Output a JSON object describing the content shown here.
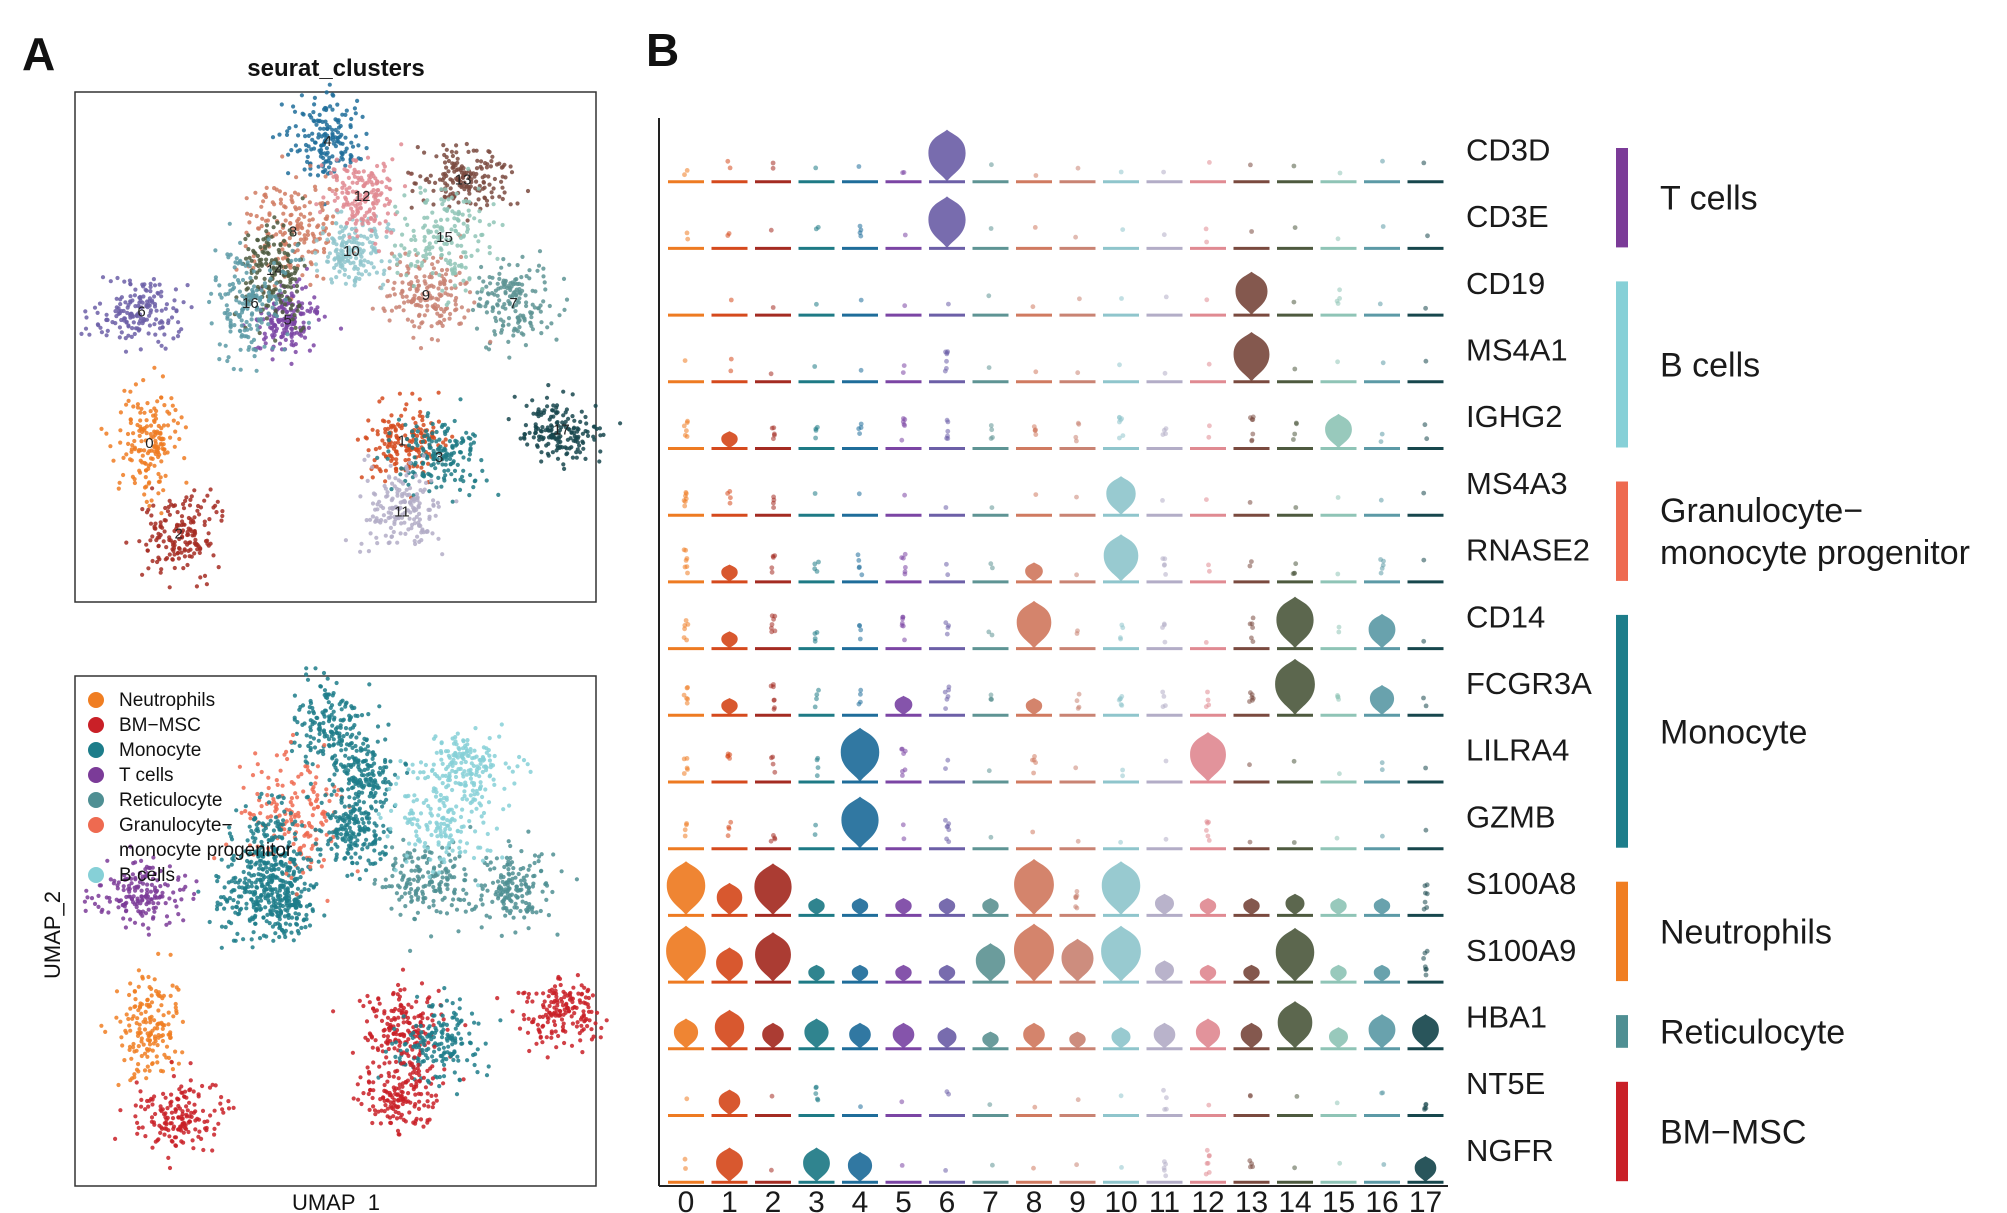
{
  "figure": {
    "panel_a_label": "A",
    "panel_b_label": "B"
  },
  "chart_data": [
    {
      "type": "scatter",
      "title": "seurat_clusters",
      "xlabel": "",
      "ylabel": "",
      "clusters": [
        {
          "id": "0",
          "x": -6.5,
          "y": 0.5,
          "color": "#EE7B22"
        },
        {
          "id": "1",
          "x": 3.0,
          "y": 0.6,
          "color": "#D54A1D"
        },
        {
          "id": "2",
          "x": -5.4,
          "y": -2.8,
          "color": "#A42B22"
        },
        {
          "id": "3",
          "x": 4.4,
          "y": 0.0,
          "color": "#1E7A85"
        },
        {
          "id": "4",
          "x": 0.2,
          "y": 11.5,
          "color": "#1F6D9A"
        },
        {
          "id": "5",
          "x": -1.3,
          "y": 5.0,
          "color": "#7B45A4"
        },
        {
          "id": "6",
          "x": -6.8,
          "y": 5.3,
          "color": "#6C5FA7"
        },
        {
          "id": "7",
          "x": 7.2,
          "y": 5.6,
          "color": "#5E9494"
        },
        {
          "id": "8",
          "x": -1.1,
          "y": 8.2,
          "color": "#D07A60"
        },
        {
          "id": "9",
          "x": 3.9,
          "y": 5.9,
          "color": "#C98373"
        },
        {
          "id": "10",
          "x": 1.1,
          "y": 7.5,
          "color": "#8FC5CC"
        },
        {
          "id": "11",
          "x": 3.0,
          "y": -2.0,
          "color": "#B3ADC7"
        },
        {
          "id": "12",
          "x": 1.5,
          "y": 9.5,
          "color": "#E08A92"
        },
        {
          "id": "13",
          "x": 5.3,
          "y": 10.1,
          "color": "#7A4A3F"
        },
        {
          "id": "14",
          "x": -1.8,
          "y": 6.8,
          "color": "#4E5A3F"
        },
        {
          "id": "15",
          "x": 4.6,
          "y": 8.0,
          "color": "#8FC4B6"
        },
        {
          "id": "16",
          "x": -2.7,
          "y": 5.6,
          "color": "#5C9AA6"
        },
        {
          "id": "17",
          "x": 9.0,
          "y": 1.0,
          "color": "#17474D"
        }
      ]
    },
    {
      "type": "scatter",
      "title": "",
      "xlabel": "UMAP_1",
      "ylabel": "UMAP_2",
      "legend_position": "top-left",
      "legend": [
        {
          "line1": "Neutrophils",
          "line2": "",
          "color": "#F07E22"
        },
        {
          "line1": "BM−MSC",
          "line2": "",
          "color": "#C92027"
        },
        {
          "line1": "Monocyte",
          "line2": "",
          "color": "#1D7D8A"
        },
        {
          "line1": "T cells",
          "line2": "",
          "color": "#7B3B98"
        },
        {
          "line1": "Reticulocyte",
          "line2": "",
          "color": "#4F8F93"
        },
        {
          "line1": "Granulocyte−",
          "line2": "monocyte progenitor",
          "color": "#EE6A50"
        },
        {
          "line1": "B cells",
          "line2": "",
          "color": "#86D0D7"
        }
      ]
    },
    {
      "type": "violin",
      "categories": [
        "0",
        "1",
        "2",
        "3",
        "4",
        "5",
        "6",
        "7",
        "8",
        "9",
        "10",
        "11",
        "12",
        "13",
        "14",
        "15",
        "16",
        "17"
      ],
      "cluster_colors": [
        "#EE7B22",
        "#D54A1D",
        "#A42B22",
        "#1E7A85",
        "#1F6D9A",
        "#7B45A4",
        "#6C5FA7",
        "#5E9494",
        "#D07A60",
        "#C98373",
        "#8FC5CC",
        "#B3ADC7",
        "#E08A92",
        "#7A4A3F",
        "#4E5A3F",
        "#8FC4B6",
        "#5C9AA6",
        "#17474D"
      ],
      "genes": [
        "CD3D",
        "CD3E",
        "CD19",
        "MS4A1",
        "IGHG2",
        "MS4A3",
        "RNASE2",
        "CD14",
        "FCGR3A",
        "LILRA4",
        "GZMB",
        "S100A8",
        "S100A9",
        "HBA1",
        "NT5E",
        "NGFR"
      ],
      "expression": [
        [
          0.2,
          0.15,
          0.15,
          0.1,
          0.1,
          0.15,
          2.4,
          0.05,
          0.05,
          0.05,
          0.1,
          0.05,
          0.05,
          0.1,
          0.1,
          0.05,
          0.05,
          0.05
        ],
        [
          0.2,
          0.15,
          0.1,
          0.15,
          0.3,
          0.1,
          2.4,
          0.05,
          0.05,
          0.05,
          0.05,
          0.05,
          0.2,
          0.05,
          0.05,
          0.05,
          0.1,
          0.05
        ],
        [
          0,
          0.05,
          0.05,
          0.05,
          0.1,
          0.05,
          0.05,
          0.05,
          0.05,
          0.05,
          0.05,
          0.05,
          0.1,
          2.0,
          0.1,
          0.3,
          0.05,
          0.05
        ],
        [
          0.1,
          0.15,
          0.1,
          0.05,
          0.1,
          0.15,
          0.6,
          0.05,
          0.05,
          0.05,
          0.05,
          0.05,
          0.05,
          2.3,
          0.05,
          0.05,
          0.05,
          0.05
        ],
        [
          0.5,
          0.8,
          0.4,
          0.3,
          0.3,
          0.5,
          0.5,
          0.3,
          0.4,
          0.3,
          0.6,
          0.3,
          0.2,
          0.6,
          0.3,
          1.6,
          0.2,
          0.2
        ],
        [
          0.6,
          0.3,
          0.3,
          0.1,
          0.1,
          0.1,
          0.1,
          0.05,
          0.05,
          0.05,
          1.8,
          0.1,
          0.1,
          0.1,
          0.05,
          0.05,
          0.05,
          0.1
        ],
        [
          0.6,
          0.8,
          0.4,
          0.3,
          0.4,
          0.5,
          0.2,
          0.2,
          0.9,
          0.1,
          2.2,
          0.4,
          0.2,
          0.2,
          0.3,
          0.1,
          0.4,
          0.1
        ],
        [
          0.5,
          0.8,
          0.6,
          0.3,
          0.3,
          0.6,
          0.3,
          0.2,
          2.2,
          0.2,
          0.3,
          0.3,
          0.1,
          0.5,
          2.4,
          0.2,
          1.6,
          0.1
        ],
        [
          0.5,
          0.8,
          0.6,
          0.3,
          0.3,
          0.9,
          0.5,
          0.3,
          0.8,
          0.3,
          0.5,
          0.3,
          0.3,
          0.5,
          2.6,
          0.3,
          1.4,
          0.2
        ],
        [
          0.4,
          0.4,
          0.3,
          0.3,
          2.5,
          0.6,
          0.2,
          0.1,
          0.4,
          0.1,
          0.2,
          0.1,
          2.3,
          0.1,
          0.1,
          0.1,
          0.2,
          0.1
        ],
        [
          0.3,
          0.3,
          0.3,
          0.2,
          2.4,
          0.2,
          0.6,
          0.1,
          0.1,
          0.1,
          0.1,
          0.1,
          0.5,
          0.1,
          0.1,
          0.1,
          0.1,
          0.1
        ],
        [
          2.5,
          1.5,
          2.4,
          0.8,
          0.8,
          0.8,
          0.8,
          0.8,
          2.6,
          0.6,
          2.5,
          1.0,
          0.8,
          0.8,
          1.0,
          0.8,
          0.8,
          0.6
        ],
        [
          2.6,
          1.6,
          2.3,
          0.8,
          0.8,
          0.8,
          0.8,
          1.8,
          2.7,
          2.0,
          2.6,
          1.0,
          0.8,
          0.8,
          2.5,
          0.8,
          0.8,
          0.6
        ],
        [
          1.4,
          1.8,
          1.2,
          1.4,
          1.2,
          1.2,
          1.0,
          0.8,
          1.2,
          0.8,
          1.0,
          1.2,
          1.4,
          1.2,
          2.2,
          1.0,
          1.6,
          1.6
        ],
        [
          0.1,
          1.2,
          0.1,
          0.4,
          0.1,
          0.05,
          0.2,
          0.05,
          0.05,
          0.05,
          0.05,
          0.3,
          0.05,
          0.2,
          0.05,
          0.05,
          0.2,
          0.4
        ],
        [
          0.2,
          1.6,
          0.1,
          1.6,
          1.4,
          0.1,
          0.1,
          0.1,
          0.1,
          0.05,
          0.1,
          0.4,
          0.6,
          0.3,
          0.1,
          0.1,
          0.1,
          1.2
        ]
      ],
      "cell_groups": [
        {
          "label_lines": [
            "T cells"
          ],
          "color": "#7B3B98",
          "from_gene": "CD3D",
          "to_gene": "CD3E"
        },
        {
          "label_lines": [
            "B cells"
          ],
          "color": "#86D0D7",
          "from_gene": "CD19",
          "to_gene": "IGHG2"
        },
        {
          "label_lines": [
            "Granulocyte−",
            "monocyte progenitor"
          ],
          "color": "#EE6A50",
          "from_gene": "MS4A3",
          "to_gene": "RNASE2"
        },
        {
          "label_lines": [
            "Monocyte"
          ],
          "color": "#1D7D8A",
          "from_gene": "CD14",
          "to_gene": "GZMB"
        },
        {
          "label_lines": [
            "Neutrophils"
          ],
          "color": "#F07E22",
          "from_gene": "S100A8",
          "to_gene": "S100A9"
        },
        {
          "label_lines": [
            "Reticulocyte"
          ],
          "color": "#4F8F93",
          "from_gene": "HBA1",
          "to_gene": "HBA1"
        },
        {
          "label_lines": [
            "BM−MSC"
          ],
          "color": "#C92027",
          "from_gene": "NT5E",
          "to_gene": "NGFR"
        }
      ]
    }
  ]
}
